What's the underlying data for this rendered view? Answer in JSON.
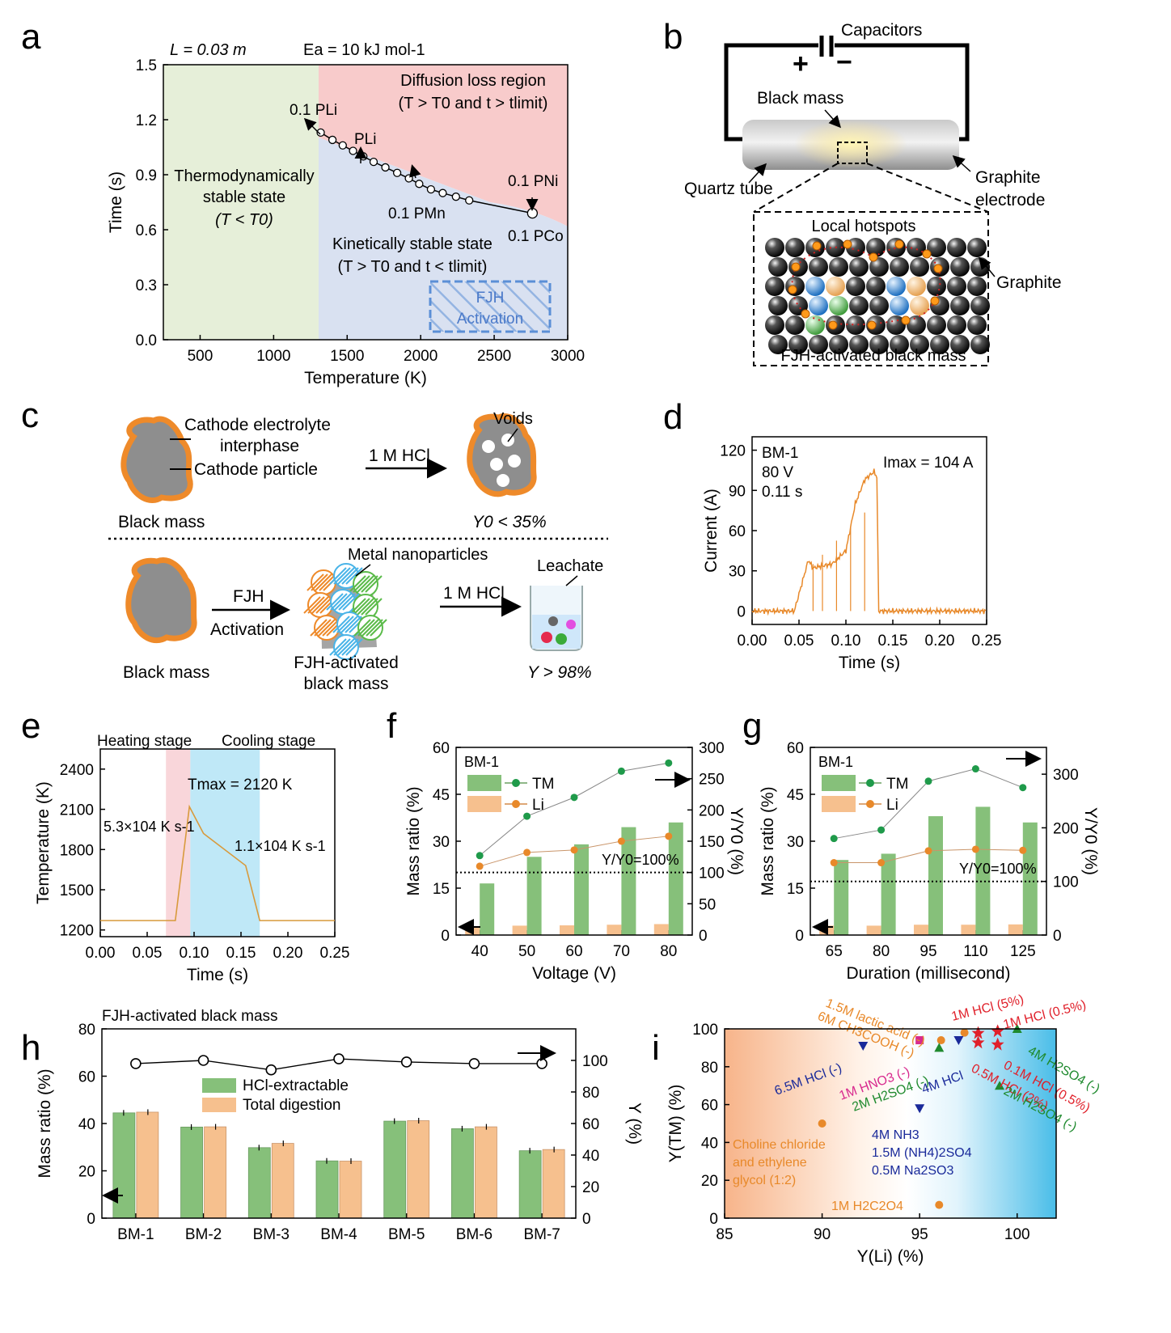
{
  "panels": [
    "a",
    "b",
    "c",
    "d",
    "e",
    "f",
    "g",
    "h",
    "i"
  ],
  "a": {
    "header_L": "L = 0.03 m",
    "header_Ea": "Ea = 10 kJ mol-1",
    "region_stable_l1": "Thermodynamically",
    "region_stable_l2": "stable state",
    "region_stable_l3": "(T < T0)",
    "region_diffusion_l1": "Diffusion loss region",
    "region_diffusion_l2": "(T > T0 and  t > tlimit)",
    "region_kinetic_l1": "Kinetically stable state",
    "region_kinetic_l2": "(T > T0 and  t < tlimit)",
    "fjh_l1": "FJH",
    "fjh_l2": "Activation",
    "ann_01PLi": "0.1 PLi",
    "ann_PLi": "PLi",
    "ann_01PMn": "0.1 PMn",
    "ann_01PNi": "0.1 PNi",
    "ann_01PCo": "0.1 PCo",
    "colors": {
      "green": "#e6efd9",
      "red": "#f8cbcb",
      "blue": "#d9e1f1"
    },
    "chart_data": {
      "type": "line",
      "xlabel": "Temperature (K)",
      "ylabel": "Time (s)",
      "xlim": [
        250,
        3000
      ],
      "ylim": [
        0.0,
        1.5
      ],
      "xticks": [
        500,
        1000,
        1500,
        2000,
        2500,
        3000
      ],
      "yticks": [
        "0.0",
        "0.3",
        "0.6",
        "0.9",
        "1.2",
        "1.5"
      ],
      "x": [
        1320,
        1400,
        1470,
        1540,
        1610,
        1680,
        1760,
        1840,
        1920,
        1990,
        2070,
        2150,
        2240,
        2330,
        2760
      ],
      "y": [
        1.13,
        1.09,
        1.06,
        1.03,
        1.0,
        0.97,
        0.94,
        0.91,
        0.88,
        0.85,
        0.82,
        0.8,
        0.78,
        0.76,
        0.69
      ],
      "boundary_T0": 1320
    }
  },
  "b": {
    "capacitors": "Capacitors",
    "plus": "+",
    "minus": "−",
    "black_mass": "Black mass",
    "quartz_tube": "Quartz tube",
    "graphite_electrode_l1": "Graphite",
    "graphite_electrode_l2": "electrode",
    "local_hotspots": "Local hotspots",
    "graphite": "Graphite",
    "fjh_black_mass": "FJH-activated black mass"
  },
  "c": {
    "cei_l1": "Cathode electrolyte",
    "cei_l2": "interphase",
    "cathode_particle": "Cathode particle",
    "hcl1": "1 M HCl",
    "voids": "Voids",
    "black_mass_top": "Black mass",
    "y0": "Y0 < 35%",
    "fjh_l1": "FJH",
    "fjh_l2": "Activation",
    "metal_np": "Metal nanoparticles",
    "leachate": "Leachate",
    "hcl2": "1 M HCl",
    "black_mass_bottom": "Black mass",
    "fjh_bm_l1": "FJH-activated",
    "fjh_bm_l2": "black mass",
    "y98": "Y > 98%"
  },
  "d": {
    "ann_bm": "BM-1",
    "ann_v": "80 V",
    "ann_t": "0.11 s",
    "ann_imax": "Imax = 104 A",
    "chart_data": {
      "type": "line",
      "xlabel": "Time (s)",
      "ylabel": "Current (A)",
      "xlim": [
        0,
        0.25
      ],
      "ylim": [
        -10,
        130
      ],
      "xticks": [
        "0.00",
        "0.05",
        "0.10",
        "0.15",
        "0.20",
        "0.25"
      ],
      "yticks": [
        "0",
        "30",
        "60",
        "90",
        "120"
      ],
      "x": [
        0,
        0.045,
        0.06,
        0.065,
        0.07,
        0.085,
        0.1,
        0.11,
        0.12,
        0.13,
        0.133,
        0.135,
        0.25
      ],
      "y": [
        0,
        0,
        38,
        32,
        33,
        35,
        45,
        80,
        98,
        104,
        100,
        0,
        0
      ],
      "color": "#e8892a"
    }
  },
  "e": {
    "heating": "Heating stage",
    "cooling": "Cooling stage",
    "tmax": "Tmax = 2120 K",
    "rate1": "5.3×104 K s-1",
    "rate2": "1.1×104 K s-1",
    "chart_data": {
      "type": "line",
      "xlabel": "Time (s)",
      "ylabel": "Temperature (K)",
      "xlim": [
        0,
        0.25
      ],
      "ylim": [
        1150,
        2550
      ],
      "xticks": [
        "0.00",
        "0.05",
        "0.10",
        "0.15",
        "0.20",
        "0.25"
      ],
      "yticks": [
        "1200",
        "1500",
        "1800",
        "2100",
        "2400"
      ],
      "x": [
        0,
        0.08,
        0.095,
        0.11,
        0.155,
        0.17,
        0.25
      ],
      "y": [
        1270,
        1270,
        2120,
        1920,
        1680,
        1270,
        1270
      ],
      "heating_span": [
        0.07,
        0.096
      ],
      "cooling_span": [
        0.096,
        0.17
      ],
      "color": "#d89a3c"
    }
  },
  "f": {
    "bm": "BM-1",
    "legend_tm": "TM",
    "legend_li": "Li",
    "ref": "Y/Y0=100%",
    "chart_data": {
      "type": "bar",
      "xlabel": "Voltage (V)",
      "ylabel": "Mass ratio (%)",
      "y2label": "Y/Y0 (%)",
      "categories": [
        "40",
        "50",
        "60",
        "70",
        "80"
      ],
      "ylim": [
        0,
        60
      ],
      "y2lim": [
        0,
        300
      ],
      "yticks": [
        "0",
        "15",
        "30",
        "45",
        "60"
      ],
      "y2ticks": [
        "0",
        "50",
        "100",
        "150",
        "200",
        "250",
        "300"
      ],
      "series": [
        {
          "name": "TM mass ratio",
          "values": [
            16.5,
            25,
            29,
            34.5,
            36
          ]
        },
        {
          "name": "Li mass ratio",
          "values": [
            2.6,
            3.0,
            3.1,
            3.3,
            3.5
          ]
        },
        {
          "name": "TM Y/Y0",
          "values": [
            127,
            190,
            220,
            262,
            275
          ]
        },
        {
          "name": "Li Y/Y0",
          "values": [
            110,
            132,
            136,
            150,
            158
          ]
        }
      ],
      "ref_y2": 100
    }
  },
  "g": {
    "bm": "BM-1",
    "legend_tm": "TM",
    "legend_li": "Li",
    "ref": "Y/Y0=100%",
    "chart_data": {
      "type": "bar",
      "xlabel": "Duration (millisecond)",
      "ylabel": "Mass ratio (%)",
      "y2label": "Y/Y0 (%)",
      "categories": [
        "65",
        "80",
        "95",
        "110",
        "125"
      ],
      "ylim": [
        0,
        60
      ],
      "y2lim": [
        0,
        350
      ],
      "yticks": [
        "0",
        "15",
        "30",
        "45",
        "60"
      ],
      "y2ticks": [
        "0",
        "100",
        "200",
        "300"
      ],
      "series": [
        {
          "name": "TM mass ratio",
          "values": [
            24,
            26,
            38,
            41,
            36
          ]
        },
        {
          "name": "Li mass ratio",
          "values": [
            3.0,
            3.0,
            3.3,
            3.3,
            3.4
          ]
        },
        {
          "name": "TM Y/Y0",
          "values": [
            180,
            196,
            287,
            310,
            275
          ]
        },
        {
          "name": "Li Y/Y0",
          "values": [
            135,
            135,
            157,
            160,
            158
          ]
        }
      ],
      "ref_y2": 100
    }
  },
  "h": {
    "title": "FJH-activated black mass",
    "legend_hcl": "HCl-extractable",
    "legend_total": "Total digestion",
    "chart_data": {
      "type": "bar",
      "xlabel": "",
      "ylabel": "Mass ratio (%)",
      "y2label": "Y (%)",
      "categories": [
        "BM-1",
        "BM-2",
        "BM-3",
        "BM-4",
        "BM-5",
        "BM-6",
        "BM-7"
      ],
      "ylim": [
        0,
        80
      ],
      "y2lim": [
        0,
        120
      ],
      "yticks": [
        "0",
        "20",
        "40",
        "60",
        "80"
      ],
      "y2ticks": [
        "0",
        "20",
        "40",
        "60",
        "80",
        "100"
      ],
      "series": [
        {
          "name": "HCl-extractable",
          "values": [
            44.5,
            38.5,
            29.8,
            24.2,
            41,
            37.8,
            28.5
          ]
        },
        {
          "name": "Total digestion",
          "values": [
            44.8,
            38.6,
            31.6,
            24.1,
            41.2,
            38.6,
            29
          ]
        },
        {
          "name": "Y",
          "values": [
            98,
            100,
            94,
            101,
            99,
            98,
            98
          ]
        }
      ]
    }
  },
  "i": {
    "labels": {
      "lactic": "1.5M lactic acid (-)",
      "ch3cooh": "6M CH3COOH (-)",
      "hcl5": "1M HCl (5%)",
      "hcl05a": "1M HCl (0.5%)",
      "h2so4_4": "4M H2SO4 (-)",
      "hcl65": "6.5M HCl (-)",
      "hno3": "1M HNO3 (-)",
      "h2so4_2a": "2M H2SO4 (-)",
      "hcl4": "4M HCl",
      "hcl05b": "0.5M HCl (2%)",
      "hcl01": "0.1M HCl (0.5%)",
      "h2so4_2b": "2M H2SO4 (-)",
      "choline_l1": "Choline chloride",
      "choline_l2": "and ethylene",
      "choline_l3": "glycol (1:2)",
      "nh3_l1": "4M NH3",
      "nh3_l2": "1.5M (NH4)2SO4",
      "nh3_l3": "0.5M Na2SO3",
      "oxalic": "1M H2C2O4"
    },
    "chart_data": {
      "type": "scatter",
      "xlabel": "Y(Li) (%)",
      "ylabel": "Y(TM) (%)",
      "xlim": [
        85,
        102
      ],
      "ylim": [
        0,
        100
      ],
      "xticks": [
        "85",
        "90",
        "95",
        "100"
      ],
      "yticks": [
        "0",
        "20",
        "40",
        "60",
        "80",
        "100"
      ],
      "points": [
        {
          "name": "1.5M lactic acid",
          "x": 96.1,
          "y": 94,
          "color": "#e8892a"
        },
        {
          "name": "6M CH3COOH",
          "x": 97.3,
          "y": 98,
          "color": "#e8892a"
        },
        {
          "name": "1M HCl (5%)",
          "x": 98,
          "y": 98,
          "color": "#e0202a"
        },
        {
          "name": "1M HCl (0.5%)",
          "x": 99,
          "y": 99,
          "color": "#e0202a"
        },
        {
          "name": "4M H2SO4",
          "x": 100,
          "y": 100,
          "color": "#1f8a2e"
        },
        {
          "name": "6.5M HCl",
          "x": 92.1,
          "y": 91,
          "color": "#1a2a9a"
        },
        {
          "name": "1M HNO3",
          "x": 95,
          "y": 94,
          "color": "#d82a8e"
        },
        {
          "name": "2M H2SO4",
          "x": 96,
          "y": 90,
          "color": "#1f8a2e"
        },
        {
          "name": "4M HCl",
          "x": 97,
          "y": 94,
          "color": "#1a2a9a"
        },
        {
          "name": "0.5M HCl (2%)",
          "x": 98,
          "y": 93,
          "color": "#e0202a"
        },
        {
          "name": "0.1M HCl (0.5%)",
          "x": 99,
          "y": 92,
          "color": "#e0202a"
        },
        {
          "name": "2M H2SO4 (b)",
          "x": 99.1,
          "y": 70,
          "color": "#1f8a2e"
        },
        {
          "name": "Choline chloride",
          "x": 90,
          "y": 50,
          "color": "#e8892a"
        },
        {
          "name": "4M NH3",
          "x": 95,
          "y": 58,
          "color": "#1a2a9a"
        },
        {
          "name": "1M H2C2O4",
          "x": 96,
          "y": 7,
          "color": "#e8892a"
        }
      ]
    }
  }
}
